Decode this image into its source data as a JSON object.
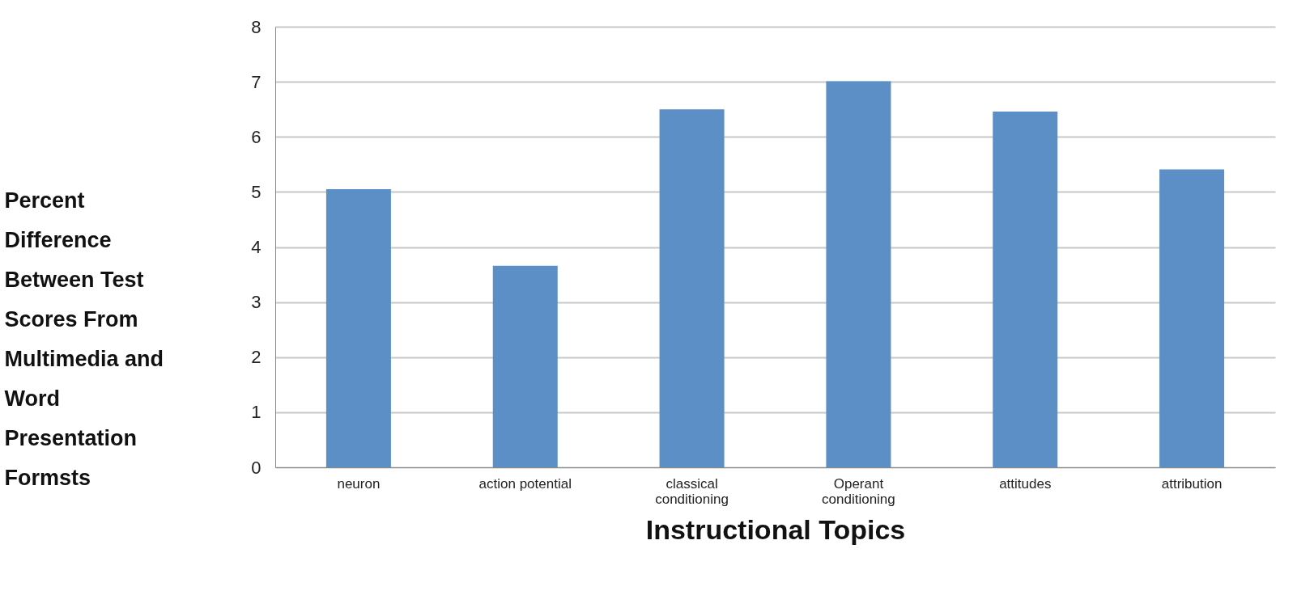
{
  "chart_data": {
    "type": "bar",
    "xlabel": "Instructional Topics",
    "ylabel": "Percent Difference Between  Test Scores From Multimedia and Word Presentation Formsts",
    "categories": [
      "neuron",
      "action potential",
      "classical conditioning",
      "Operant conditioning",
      "attitudes",
      "attribution"
    ],
    "values": [
      5.05,
      3.66,
      6.5,
      7.01,
      6.46,
      5.41
    ],
    "color": "#5b8fc5",
    "ylim": [
      0,
      8
    ],
    "yticks": [
      0,
      1,
      2,
      3,
      4,
      5,
      6,
      7,
      8
    ],
    "grid": "y"
  }
}
